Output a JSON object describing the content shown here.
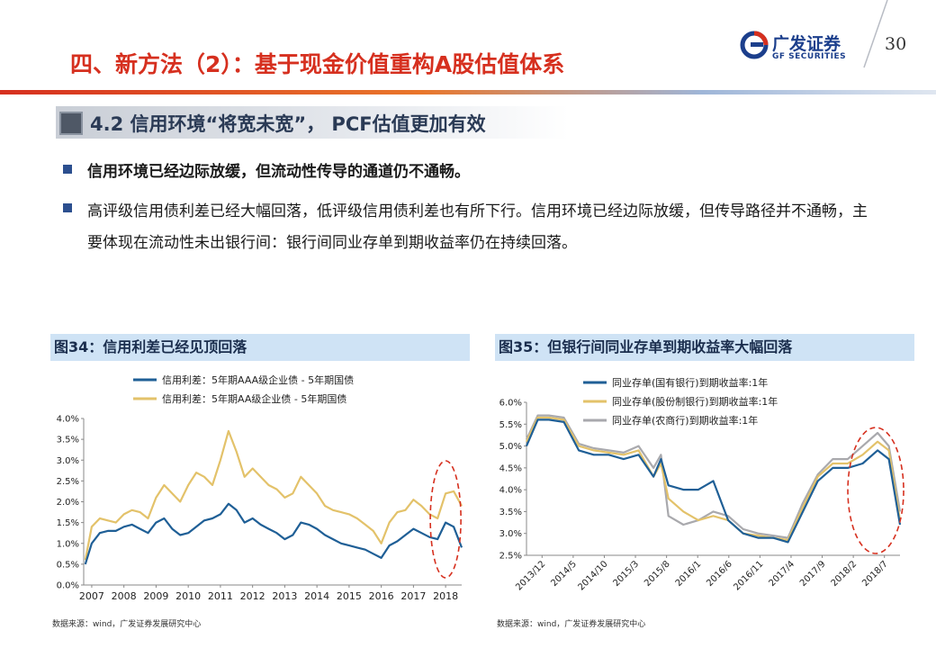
{
  "header": {
    "title": "四、新方法（2）：基于现金价值重构A股估值体系",
    "logo_cn": "广发证券",
    "logo_en": "GF SECURITIES",
    "page_number": "30"
  },
  "section": {
    "title": "4.2 信用环境“将宽未宽”， PCF估值更加有效"
  },
  "bullets": [
    {
      "text": "信用环境已经边际放缓，但流动性传导的通道仍不通畅。"
    },
    {
      "text": "高评级信用债利差已经大幅回落，低评级信用债利差也有所下行。信用环境已经边际放缓，但传导路径并不通畅，主要体现在流动性未出银行间：银行间同业存单到期收益率仍在持续回落。"
    }
  ],
  "chart_data": [
    {
      "type": "line",
      "title": "图34：信用利差已经见顶回落",
      "source": "数据来源：wind，广发证券发展研究中心",
      "x": [
        2006.8,
        2007.0,
        2007.25,
        2007.5,
        2007.75,
        2008.0,
        2008.25,
        2008.5,
        2008.75,
        2009.0,
        2009.25,
        2009.5,
        2009.75,
        2010.0,
        2010.25,
        2010.5,
        2010.75,
        2011.0,
        2011.25,
        2011.5,
        2011.75,
        2012.0,
        2012.25,
        2012.5,
        2012.75,
        2013.0,
        2013.25,
        2013.5,
        2013.75,
        2014.0,
        2014.25,
        2014.5,
        2014.75,
        2015.0,
        2015.25,
        2015.5,
        2015.75,
        2016.0,
        2016.25,
        2016.5,
        2016.75,
        2017.0,
        2017.25,
        2017.5,
        2017.75,
        2018.0,
        2018.25,
        2018.5
      ],
      "x_ticks": [
        "2007",
        "2008",
        "2009",
        "2010",
        "2011",
        "2012",
        "2013",
        "2014",
        "2015",
        "2016",
        "2017",
        "2018"
      ],
      "y_ticks": [
        "0.0%",
        "0.5%",
        "1.0%",
        "1.5%",
        "2.0%",
        "2.5%",
        "3.0%",
        "3.5%",
        "4.0%"
      ],
      "xlim": [
        2006.75,
        2018.5
      ],
      "ylim": [
        0,
        4
      ],
      "series": [
        {
          "name": "信用利差：5年期AAA级企业债 - 5年期国债",
          "color": "#1f5f96",
          "values": [
            0.5,
            1.0,
            1.25,
            1.3,
            1.3,
            1.4,
            1.45,
            1.35,
            1.25,
            1.5,
            1.6,
            1.35,
            1.2,
            1.25,
            1.4,
            1.55,
            1.6,
            1.7,
            1.95,
            1.8,
            1.5,
            1.6,
            1.45,
            1.35,
            1.25,
            1.1,
            1.2,
            1.5,
            1.45,
            1.35,
            1.2,
            1.1,
            1.0,
            0.95,
            0.9,
            0.85,
            0.75,
            0.65,
            0.95,
            1.05,
            1.2,
            1.35,
            1.25,
            1.15,
            1.1,
            1.5,
            1.4,
            0.9
          ]
        },
        {
          "name": "信用利差：5年期AA级企业债 - 5年期国债",
          "color": "#e3c26a",
          "values": [
            0.6,
            1.4,
            1.6,
            1.55,
            1.5,
            1.7,
            1.8,
            1.75,
            1.6,
            2.1,
            2.4,
            2.2,
            2.0,
            2.4,
            2.7,
            2.6,
            2.4,
            3.0,
            3.7,
            3.2,
            2.6,
            2.8,
            2.6,
            2.4,
            2.3,
            2.1,
            2.2,
            2.6,
            2.4,
            2.2,
            1.9,
            1.8,
            1.75,
            1.7,
            1.6,
            1.45,
            1.3,
            1.0,
            1.5,
            1.75,
            1.8,
            2.05,
            1.9,
            1.7,
            1.6,
            2.2,
            2.25,
            1.9
          ]
        }
      ]
    },
    {
      "type": "line",
      "title": "图35：但银行间同业存单到期收益率大幅回落",
      "source": "数据来源：wind，广发证券发展研究中心",
      "x": [
        0,
        0.03,
        0.06,
        0.1,
        0.14,
        0.18,
        0.22,
        0.26,
        0.3,
        0.34,
        0.36,
        0.38,
        0.42,
        0.46,
        0.5,
        0.54,
        0.58,
        0.62,
        0.66,
        0.7,
        0.74,
        0.78,
        0.82,
        0.86,
        0.9,
        0.94,
        0.97,
        1.0
      ],
      "x_ticks": [
        "2013/12",
        "2014/5",
        "2014/10",
        "2015/3",
        "2015/8",
        "2016/1",
        "2016/6",
        "2016/11",
        "2017/4",
        "2017/9",
        "2018/2",
        "2018/7"
      ],
      "y_ticks": [
        "2.5%",
        "3.0%",
        "3.5%",
        "4.0%",
        "4.5%",
        "5.0%",
        "5.5%",
        "6.0%"
      ],
      "xlim": [
        0,
        1
      ],
      "ylim": [
        2.5,
        6
      ],
      "series": [
        {
          "name": "同业存单(国有银行)到期收益率:1年",
          "color": "#1f5f96",
          "values": [
            5.0,
            5.6,
            5.6,
            5.55,
            4.9,
            4.8,
            4.8,
            4.7,
            4.8,
            4.3,
            4.7,
            4.1,
            4.0,
            4.0,
            4.2,
            3.3,
            3.0,
            2.9,
            2.9,
            2.8,
            3.5,
            4.2,
            4.5,
            4.5,
            4.6,
            4.9,
            4.7,
            3.2
          ]
        },
        {
          "name": "同业存单(股份制银行)到期收益率:1年",
          "color": "#e3c26a",
          "values": [
            5.1,
            5.65,
            5.65,
            5.6,
            5.0,
            4.9,
            4.85,
            4.8,
            4.9,
            4.3,
            4.6,
            3.8,
            3.5,
            3.3,
            3.4,
            3.3,
            3.0,
            2.95,
            2.9,
            2.85,
            3.6,
            4.3,
            4.6,
            4.6,
            4.8,
            5.1,
            4.9,
            3.3
          ]
        },
        {
          "name": "同业存单(农商行)到期收益率:1年",
          "color": "#a9a9ad",
          "values": [
            5.15,
            5.7,
            5.7,
            5.65,
            5.05,
            4.95,
            4.9,
            4.85,
            5.0,
            4.5,
            4.8,
            3.4,
            3.2,
            3.3,
            3.5,
            3.4,
            3.1,
            3.0,
            2.95,
            2.9,
            3.7,
            4.35,
            4.7,
            4.7,
            5.0,
            5.3,
            5.0,
            3.5
          ]
        }
      ]
    }
  ]
}
